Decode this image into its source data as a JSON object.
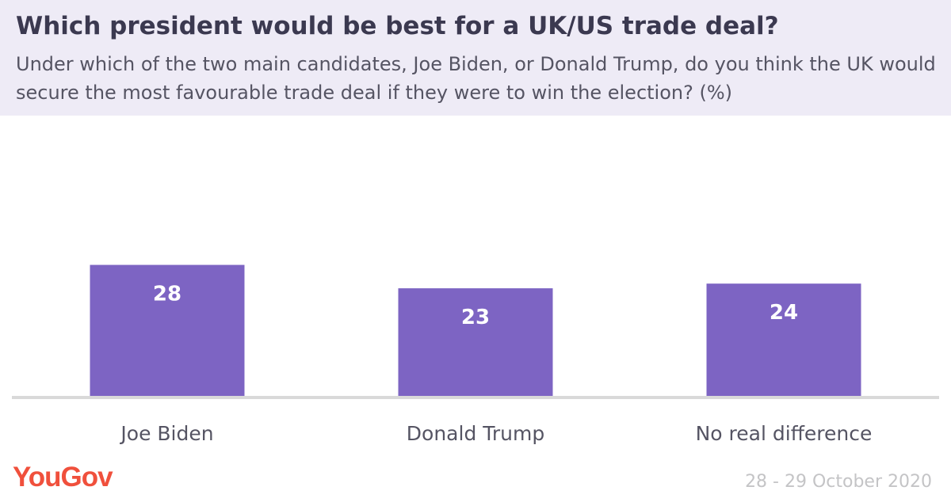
{
  "header": {
    "title": "Which president would be best for a UK/US trade deal?",
    "subtitle": "Under which of the two main candidates, Joe Biden, or Donald Trump, do you think the UK would secure the most favourable trade deal if they were to win the election? (%)"
  },
  "chart_data": {
    "type": "bar",
    "title": "Which president would be best for a UK/US trade deal?",
    "subtitle": "Under which of the two main candidates, Joe Biden, or Donald Trump, do you think the UK would secure the most favourable trade deal if they were to win the election? (%)",
    "categories": [
      "Joe Biden",
      "Donald Trump",
      "No real difference"
    ],
    "values": [
      28,
      23,
      24
    ],
    "data_labels": [
      "28",
      "23",
      "24"
    ],
    "xlabel": "",
    "ylabel": "",
    "ylim": [
      0,
      55
    ],
    "grid": false,
    "colors": {
      "bar": "#7d64c3",
      "baseline": "#d9d9d9",
      "data_label": "#ffffff",
      "category_label": "#555463"
    }
  },
  "footer": {
    "brand": "YouGov",
    "date": "28 - 29 October 2020"
  },
  "colors": {
    "header_bg": "#eeebf6",
    "title": "#3b3950",
    "brand": "#f0503c",
    "date": "#c4c4c6"
  }
}
